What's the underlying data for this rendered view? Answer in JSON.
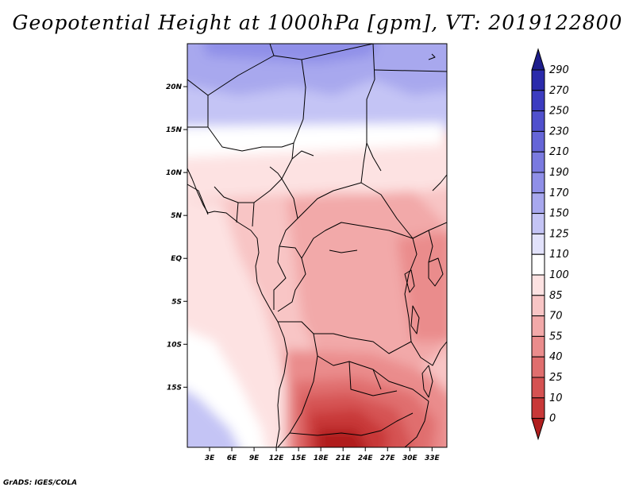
{
  "title": "Geopotential Height at 1000hPa [gpm], VT: 2019122800",
  "footer": "GrADS: IGES/COLA",
  "map": {
    "variable": "Geopotential Height",
    "level": "1000hPa",
    "units": "gpm",
    "valid_time": "2019122800",
    "lon_range": [
      0,
      35
    ],
    "lat_range": [
      -22,
      25
    ],
    "lat_ticks": [
      {
        "label": "20N",
        "value": 20
      },
      {
        "label": "15N",
        "value": 15
      },
      {
        "label": "10N",
        "value": 10
      },
      {
        "label": "5N",
        "value": 5
      },
      {
        "label": "EQ",
        "value": 0
      },
      {
        "label": "5S",
        "value": -5
      },
      {
        "label": "10S",
        "value": -10
      },
      {
        "label": "15S",
        "value": -15
      }
    ],
    "lon_ticks": [
      {
        "label": "3E",
        "value": 3
      },
      {
        "label": "6E",
        "value": 6
      },
      {
        "label": "9E",
        "value": 9
      },
      {
        "label": "12E",
        "value": 12
      },
      {
        "label": "15E",
        "value": 15
      },
      {
        "label": "18E",
        "value": 18
      },
      {
        "label": "21E",
        "value": 21
      },
      {
        "label": "24E",
        "value": 24
      },
      {
        "label": "27E",
        "value": 27
      },
      {
        "label": "30E",
        "value": 30
      },
      {
        "label": "33E",
        "value": 33
      }
    ]
  },
  "colorbar": {
    "levels": [
      "290",
      "270",
      "250",
      "230",
      "210",
      "190",
      "170",
      "150",
      "125",
      "110",
      "100",
      "85",
      "70",
      "55",
      "40",
      "25",
      "10",
      "0"
    ],
    "colors": [
      "#1e1e8c",
      "#2b2bab",
      "#3c3cc0",
      "#5050cd",
      "#6565d7",
      "#7a7ae0",
      "#8f8fe8",
      "#a8a8ee",
      "#c4c4f5",
      "#e2e2fb",
      "#ffffff",
      "#fde2e2",
      "#f8c5c5",
      "#f2a9a9",
      "#ea8c8c",
      "#e06e6e",
      "#d55252",
      "#c83838",
      "#b01e1e"
    ]
  }
}
